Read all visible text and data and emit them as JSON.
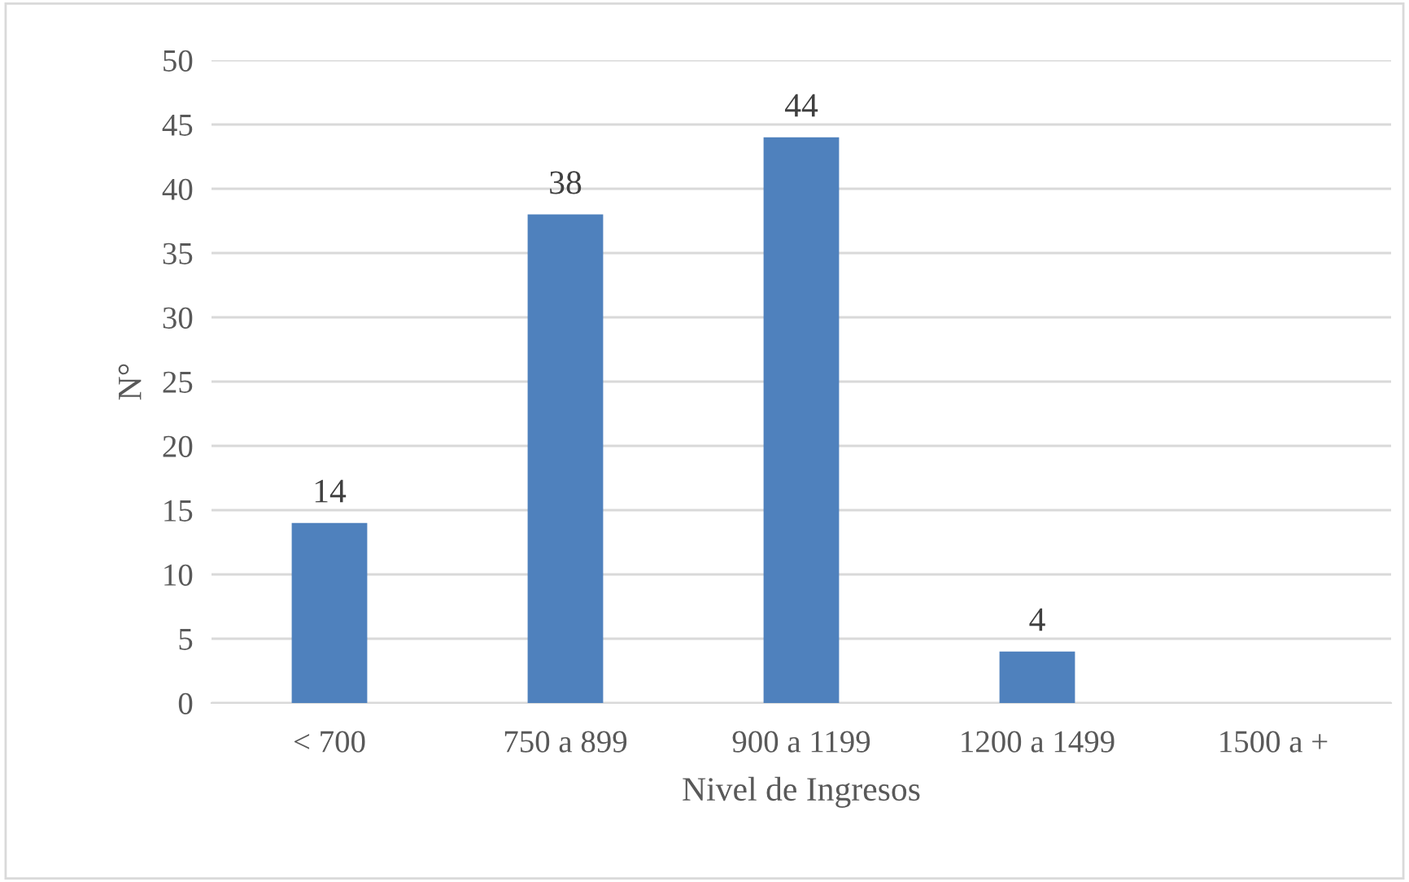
{
  "chart_data": {
    "type": "bar",
    "xlabel": "Nivel de Ingresos",
    "ylabel": "N°",
    "categories": [
      "< 700",
      "750 a 899",
      "900 a 1199",
      "1200 a 1499",
      "1500 a +"
    ],
    "values": [
      14,
      38,
      44,
      4,
      0
    ],
    "value_labels": [
      "14",
      "38",
      "44",
      "4",
      null
    ],
    "color": "#4f81bd",
    "ylim": [
      0,
      50
    ],
    "yticks": [
      0,
      5,
      10,
      15,
      20,
      25,
      30,
      35,
      40,
      45,
      50
    ],
    "grid": "y",
    "legend": false
  }
}
